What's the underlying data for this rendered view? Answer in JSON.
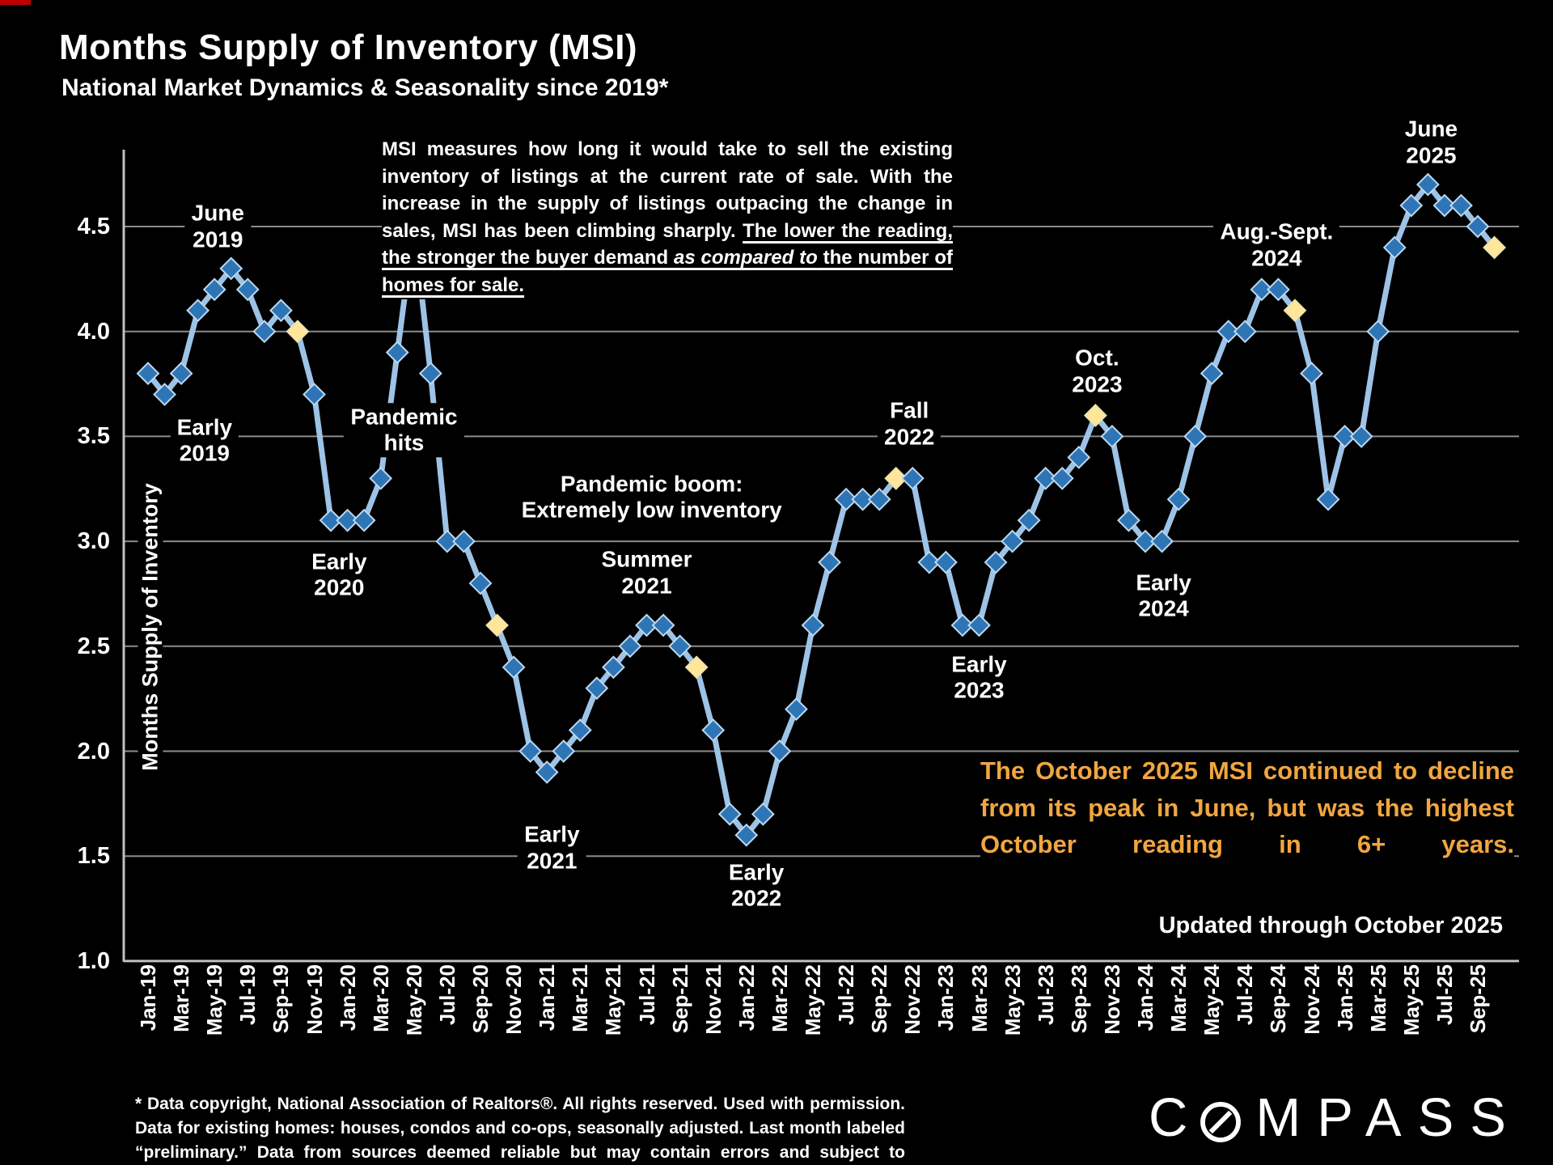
{
  "page": {
    "title": "Months Supply of Inventory (MSI)",
    "subtitle": "National Market Dynamics & Seasonality since 2019*"
  },
  "description": {
    "normal": "MSI measures how long it would take to sell the existing inventory of listings at the current rate of sale. With the increase in the supply of listings outpacing the change in sales, MSI has been climbing sharply. ",
    "underlined": "The lower the reading, the stronger the buyer demand ",
    "italic_underlined": "as compared to",
    "underlined_end": " the number of homes for sale."
  },
  "highlight_note": "The October 2025 MSI continued to decline from its peak in June, but was the highest October reading in 6+ years.",
  "updated_note": "Updated through October 2025",
  "footnote": "* Data copyright, National Association of Realtors®. All rights reserved. Used with permission. Data for existing homes: houses, condos and co-ops, seasonally adjusted. Last month labeled “preliminary.” Data from sources deemed reliable but may contain errors and subject to revision.",
  "logo": {
    "prefix": "C",
    "suffix": "MPASS",
    "full_name": "COMPASS"
  },
  "colors": {
    "line": "#9DC3E6",
    "marker": "#2E75B6",
    "marker_stroke": "#BDD7EE",
    "october_marker": "#FFE699",
    "october_stroke": "#EFE3AC",
    "highlight_text": "#F0A640",
    "gridline": "#8C8C8C",
    "axis": "#C0C0C0"
  },
  "chart_data": {
    "type": "line",
    "title": "Months Supply of Inventory (MSI)",
    "ylabel": "Months Supply of Inventory",
    "ylim": [
      1.0,
      4.5
    ],
    "yticks": [
      4.5,
      4.0,
      3.5,
      3.0,
      2.5,
      2.0,
      1.5,
      1.0
    ],
    "grid": true,
    "xtick_every": 2,
    "months": [
      "Jan-19",
      "Feb-19",
      "Mar-19",
      "Apr-19",
      "May-19",
      "Jun-19",
      "Jul-19",
      "Aug-19",
      "Sep-19",
      "Oct-19",
      "Nov-19",
      "Dec-19",
      "Jan-20",
      "Feb-20",
      "Mar-20",
      "Apr-20",
      "May-20",
      "Jun-20",
      "Jul-20",
      "Aug-20",
      "Sep-20",
      "Oct-20",
      "Nov-20",
      "Dec-20",
      "Jan-21",
      "Feb-21",
      "Mar-21",
      "Apr-21",
      "May-21",
      "Jun-21",
      "Jul-21",
      "Aug-21",
      "Sep-21",
      "Oct-21",
      "Nov-21",
      "Dec-21",
      "Jan-22",
      "Feb-22",
      "Mar-22",
      "Apr-22",
      "May-22",
      "Jun-22",
      "Jul-22",
      "Aug-22",
      "Sep-22",
      "Oct-22",
      "Nov-22",
      "Dec-22",
      "Jan-23",
      "Feb-23",
      "Mar-23",
      "Apr-23",
      "May-23",
      "Jun-23",
      "Jul-23",
      "Aug-23",
      "Sep-23",
      "Oct-23",
      "Nov-23",
      "Dec-23",
      "Jan-24",
      "Feb-24",
      "Mar-24",
      "Apr-24",
      "May-24",
      "Jun-24",
      "Jul-24",
      "Aug-24",
      "Sep-24",
      "Oct-24",
      "Nov-24",
      "Dec-24",
      "Jan-25",
      "Feb-25",
      "Mar-25",
      "Apr-25",
      "May-25",
      "Jun-25",
      "Jul-25",
      "Aug-25",
      "Sep-25",
      "Oct-25"
    ],
    "values": [
      3.8,
      3.7,
      3.8,
      4.1,
      4.2,
      4.3,
      4.2,
      4.0,
      4.1,
      4.0,
      3.7,
      3.1,
      3.1,
      3.1,
      3.3,
      3.9,
      4.5,
      3.8,
      3.0,
      3.0,
      2.8,
      2.6,
      2.4,
      2.0,
      1.9,
      2.0,
      2.1,
      2.3,
      2.4,
      2.5,
      2.6,
      2.6,
      2.5,
      2.4,
      2.1,
      1.7,
      1.6,
      1.7,
      2.0,
      2.2,
      2.6,
      2.9,
      3.2,
      3.2,
      3.2,
      3.3,
      3.3,
      2.9,
      2.9,
      2.6,
      2.6,
      2.9,
      3.0,
      3.1,
      3.3,
      3.3,
      3.4,
      3.6,
      3.5,
      3.1,
      3.0,
      3.0,
      3.2,
      3.5,
      3.8,
      4.0,
      4.0,
      4.2,
      4.2,
      4.1,
      3.8,
      3.2,
      3.5,
      3.5,
      4.0,
      4.4,
      4.6,
      4.7,
      4.6,
      4.6,
      4.5,
      4.4
    ],
    "october_indices": [
      9,
      21,
      33,
      45,
      57,
      69,
      81
    ],
    "annotations": [
      {
        "lines": [
          "June",
          "2019"
        ],
        "mi": 4.2,
        "v": 4.5
      },
      {
        "lines": [
          "Early",
          "2019"
        ],
        "mi": 3.4,
        "v": 3.48
      },
      {
        "lines": [
          "Early",
          "2020"
        ],
        "mi": 11.5,
        "v": 2.84
      },
      {
        "lines": [
          "Pandemic",
          "hits"
        ],
        "mi": 15.4,
        "v": 3.53
      },
      {
        "lines": [
          "Pandemic boom:",
          "Extremely low inventory"
        ],
        "mi": 30.3,
        "v": 3.21
      },
      {
        "lines": [
          "Summer",
          "2021"
        ],
        "mi": 30.0,
        "v": 2.85
      },
      {
        "lines": [
          "Early",
          "2021"
        ],
        "mi": 24.3,
        "v": 1.54
      },
      {
        "lines": [
          "Early",
          "2022"
        ],
        "mi": 36.6,
        "v": 1.36
      },
      {
        "lines": [
          "Fall",
          "2022"
        ],
        "mi": 45.8,
        "v": 3.56
      },
      {
        "lines": [
          "Early",
          "2023"
        ],
        "mi": 50.0,
        "v": 2.35
      },
      {
        "lines": [
          "Oct.",
          "2023"
        ],
        "mi": 57.1,
        "v": 3.81
      },
      {
        "lines": [
          "Early",
          "2024"
        ],
        "mi": 61.1,
        "v": 2.74
      },
      {
        "lines": [
          "Aug.-Sept.",
          "2024"
        ],
        "mi": 67.9,
        "v": 4.41
      },
      {
        "lines": [
          "June",
          "2025"
        ],
        "mi": 77.2,
        "v": 4.9
      }
    ]
  }
}
